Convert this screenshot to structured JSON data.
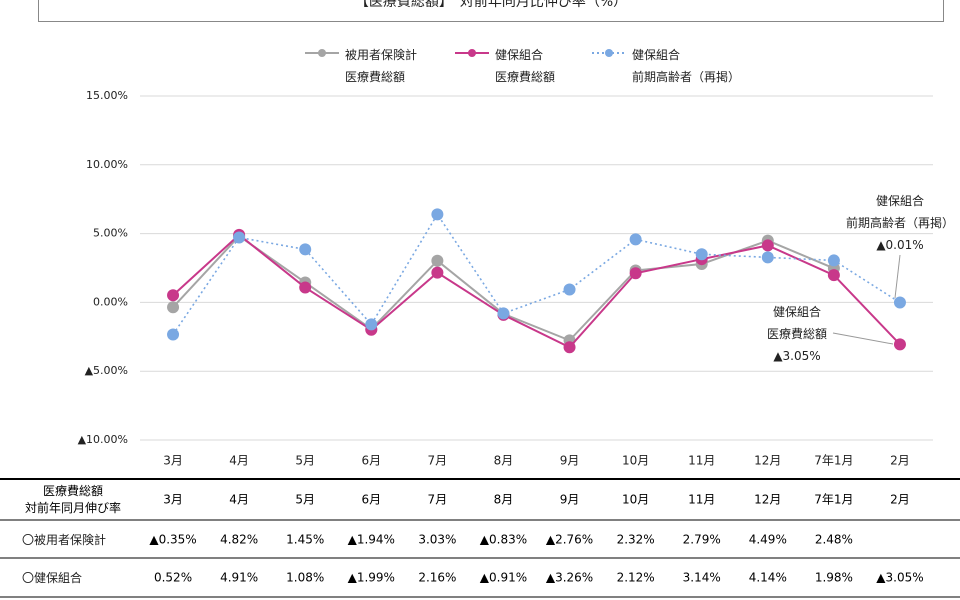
{
  "chart_data": {
    "type": "line",
    "title": "【医療費総額】　対前年同月比伸び率（%）",
    "categories": [
      "3月",
      "4月",
      "5月",
      "6月",
      "7月",
      "8月",
      "9月",
      "10月",
      "11月",
      "12月",
      "7年1月",
      "2月"
    ],
    "series": [
      {
        "name": "被用者保険計\n医療費総額",
        "color": "#a5a5a5",
        "line_style": "solid",
        "values": [
          -0.35,
          4.82,
          1.45,
          -1.94,
          3.03,
          -0.83,
          -2.76,
          2.32,
          2.79,
          4.49,
          2.48,
          null
        ],
        "value_labels": [
          "▲0.35%",
          "4.82%",
          "1.45%",
          "▲1.94%",
          "3.03%",
          "▲0.83%",
          "▲2.76%",
          "2.32%",
          "2.79%",
          "4.49%",
          "2.48%",
          null
        ]
      },
      {
        "name": "健保組合\n医療費総額",
        "color": "#c8388a",
        "line_style": "solid",
        "values": [
          0.52,
          4.91,
          1.08,
          -1.99,
          2.16,
          -0.91,
          -3.26,
          2.12,
          3.14,
          4.14,
          1.98,
          -3.05
        ],
        "value_labels": [
          "0.52%",
          "4.91%",
          "1.08%",
          "▲1.99%",
          "2.16%",
          "▲0.91%",
          "▲3.26%",
          "2.12%",
          "3.14%",
          "4.14%",
          "1.98%",
          "▲3.05%"
        ]
      },
      {
        "name": "健保組合\n前期高齢者（再掲）",
        "color": "#7aa8e2",
        "line_style": "dotted",
        "values": [
          -2.33,
          4.72,
          3.85,
          -1.6,
          6.4,
          -0.8,
          0.94,
          4.58,
          3.5,
          3.27,
          3.05,
          -0.01
        ]
      }
    ],
    "ylim": [
      -10,
      15
    ],
    "yticks": [
      {
        "value": -10,
        "label": "▲10.00%"
      },
      {
        "value": -5,
        "label": "▲5.00%"
      },
      {
        "value": 0,
        "label": "0.00%"
      },
      {
        "value": 5,
        "label": "5.00%"
      },
      {
        "value": 10,
        "label": "10.00%"
      },
      {
        "value": 15,
        "label": "15.00%"
      }
    ],
    "grid": true,
    "annotations": [
      {
        "text": "健保組合\n前期高齢者（再掲）\n▲0.01%"
      },
      {
        "text": "健保組合\n医療費総額\n▲3.05%"
      }
    ],
    "table": {
      "header": "医療費総額\n対前年同月伸び率",
      "row_labels": [
        "〇被用者保険計",
        "〇健保組合"
      ]
    }
  }
}
